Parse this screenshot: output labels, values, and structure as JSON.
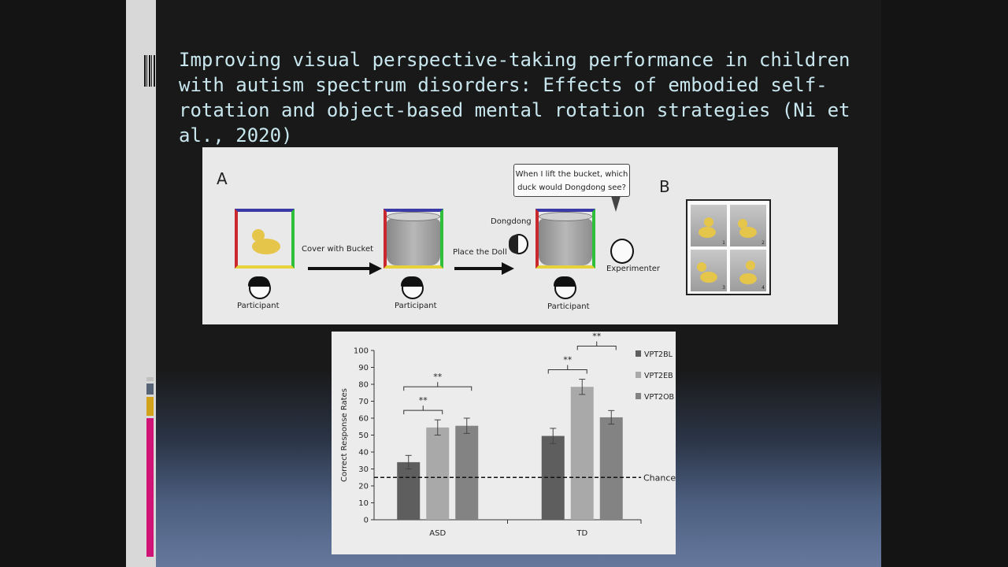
{
  "slide": {
    "title": "Improving visual perspective-taking performance in children with autism spectrum disorders: Effects of embodied self-rotation and object-based mental rotation strategies (Ni et al., 2020)",
    "accent_colors": [
      "#c0c0c0",
      "#1a2f58",
      "#566276",
      "#d1a21a",
      "#cf1377"
    ]
  },
  "figure_a": {
    "panel_a_label": "A",
    "panel_b_label": "B",
    "step1_arrow": "Cover with Bucket",
    "step2_arrow": "Place the Doll",
    "participant_label": "Participant",
    "doll_label": "Dongdong",
    "experimenter_label": "Experimenter",
    "speech_line1": "When I lift the bucket, which",
    "speech_line2": "duck would Dongdong see?",
    "photo_numbers": [
      "1",
      "2",
      "3",
      "4"
    ]
  },
  "chart_data": {
    "type": "bar",
    "categories": [
      "ASD",
      "TD"
    ],
    "series": [
      {
        "name": "VPT2BL",
        "values": [
          34,
          49.5
        ],
        "errors": [
          4,
          4.5
        ],
        "color": "#5e5e5e"
      },
      {
        "name": "VPT2EB",
        "values": [
          54.5,
          78.5
        ],
        "errors": [
          4.5,
          4.5
        ],
        "color": "#a9a9a9"
      },
      {
        "name": "VPT2OB",
        "values": [
          55.5,
          60.5
        ],
        "errors": [
          4.5,
          4
        ],
        "color": "#838383"
      }
    ],
    "ylabel": "Correct Response Rates",
    "ylim": [
      0,
      100
    ],
    "yticks": [
      0,
      10,
      20,
      30,
      40,
      50,
      60,
      70,
      80,
      90,
      100
    ],
    "reference_line": {
      "value": 25,
      "label": "Chance"
    },
    "significance": [
      {
        "category": "ASD",
        "from": "VPT2BL",
        "to": "VPT2EB",
        "label": "**"
      },
      {
        "category": "ASD",
        "from": "VPT2BL",
        "to": "VPT2OB",
        "label": "**"
      },
      {
        "category": "TD",
        "from": "VPT2BL",
        "to": "VPT2EB",
        "label": "**"
      },
      {
        "category": "TD",
        "from": "VPT2EB",
        "to": "VPT2OB",
        "label": "**"
      }
    ],
    "legend_position": "top-right"
  }
}
